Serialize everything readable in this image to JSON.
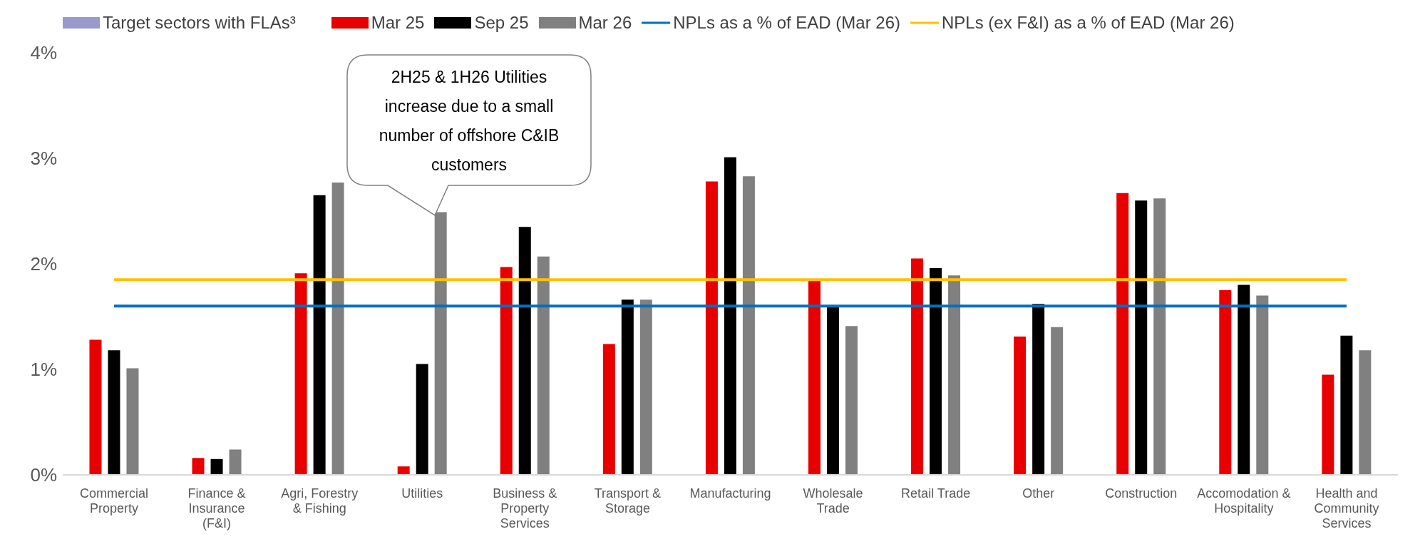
{
  "chart_data": {
    "type": "bar",
    "categories": [
      "Commercial Property",
      "Finance & Insurance (F&I)",
      "Agri, Forestry & Fishing",
      "Utilities",
      "Business & Property Services",
      "Transport & Storage",
      "Manufacturing",
      "Wholesale Trade",
      "Retail Trade",
      "Other",
      "Construction",
      "Accomodation & Hospitality",
      "Health and Community Services"
    ],
    "series": [
      {
        "name": "Target sectors with FLAs³",
        "color": "#9999cc",
        "values": [
          null,
          null,
          null,
          null,
          null,
          null,
          null,
          null,
          null,
          null,
          null,
          null,
          null
        ]
      },
      {
        "name": "Mar 25",
        "color": "#e80000",
        "values": [
          1.28,
          0.16,
          1.91,
          0.08,
          1.97,
          1.24,
          2.78,
          1.84,
          2.05,
          1.31,
          2.67,
          1.75,
          0.95
        ]
      },
      {
        "name": "Sep 25",
        "color": "#000000",
        "values": [
          1.18,
          0.15,
          2.65,
          1.05,
          2.35,
          1.66,
          3.01,
          1.6,
          1.96,
          1.62,
          2.6,
          1.8,
          1.32
        ]
      },
      {
        "name": "Mar 26",
        "color": "#808080",
        "values": [
          1.01,
          0.24,
          2.77,
          2.49,
          2.07,
          1.66,
          2.83,
          1.41,
          1.89,
          1.4,
          2.62,
          1.7,
          1.18
        ]
      },
      {
        "name": "NPLs as a % of EAD (Mar 26)",
        "type": "line",
        "color": "#0070c0",
        "values": [
          1.6,
          1.6,
          1.6,
          1.6,
          1.6,
          1.6,
          1.6,
          1.6,
          1.6,
          1.6,
          1.6,
          1.6,
          1.6
        ]
      },
      {
        "name": "NPLs (ex F&I) as a % of EAD (Mar 26)",
        "type": "line",
        "color": "#ffc000",
        "values": [
          1.85,
          1.85,
          1.85,
          1.85,
          1.85,
          1.85,
          1.85,
          1.85,
          1.85,
          1.85,
          1.85,
          1.85,
          1.85
        ]
      }
    ],
    "ylim": [
      0,
      4
    ],
    "yticks": [
      {
        "value": 0,
        "label": "0%"
      },
      {
        "value": 1,
        "label": "1%"
      },
      {
        "value": 2,
        "label": "2%"
      },
      {
        "value": 3,
        "label": "3%"
      },
      {
        "value": 4,
        "label": "4%"
      }
    ],
    "grid": false,
    "legend": "top",
    "annotations": [
      "2H25 & 1H26 Utilities increase due to a small number of offshore C&IB customers"
    ]
  }
}
